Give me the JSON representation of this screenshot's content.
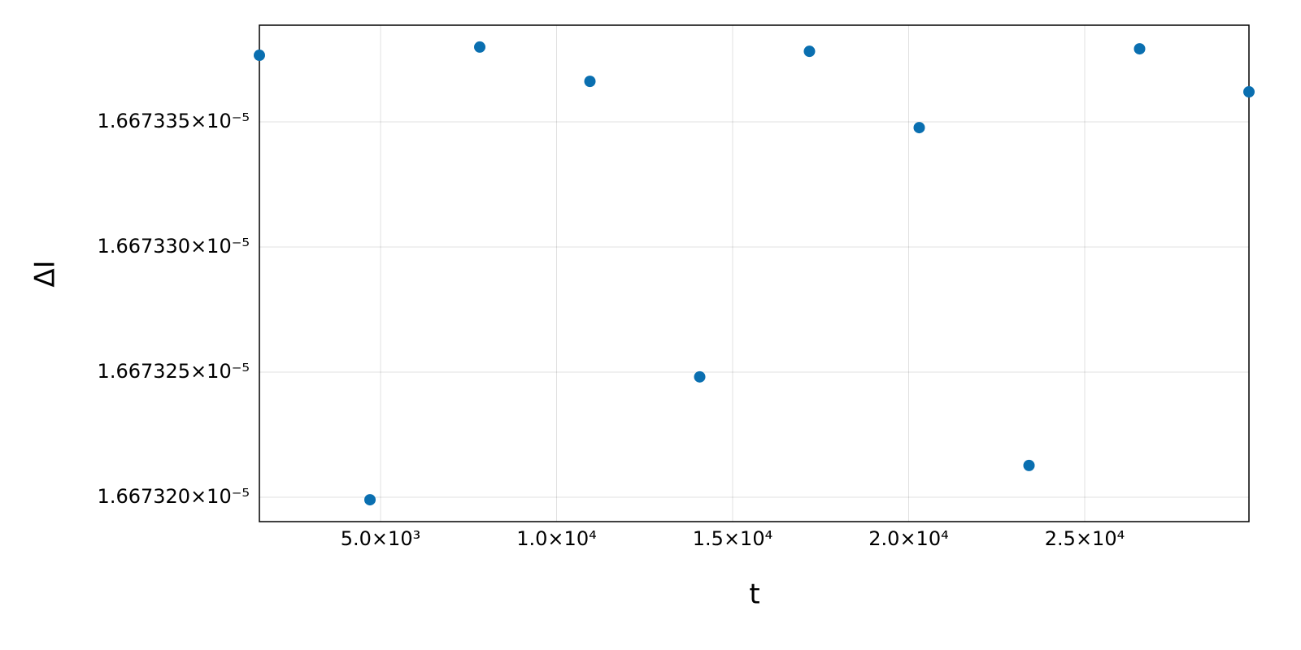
{
  "chart_data": {
    "type": "scatter",
    "x_label": "t",
    "y_label": "ΔI",
    "x": [
      1559,
      4700,
      7818,
      10947,
      14065,
      17182,
      20300,
      23418,
      26559,
      29665
    ],
    "series": [
      {
        "color": "#0a6fb0",
        "values": [
          1.667337662e-05,
          1.6673199e-05,
          1.66733799e-05,
          1.66733662e-05,
          1.66732481e-05,
          1.66733782e-05,
          1.66733477e-05,
          1.66732127e-05,
          1.66733792e-05,
          1.6673362e-05
        ]
      }
    ],
    "xlim": [
      1559,
      29665
    ],
    "ylim": [
      1.667319026e-05,
      1.667338864e-05
    ],
    "xticks": [
      {
        "value": 5000,
        "label": "5.0×10³"
      },
      {
        "value": 10000,
        "label": "1.0×10⁴"
      },
      {
        "value": 15000,
        "label": "1.5×10⁴"
      },
      {
        "value": 20000,
        "label": "2.0×10⁴"
      },
      {
        "value": 25000,
        "label": "2.5×10⁴"
      }
    ],
    "yticks": [
      {
        "value": 1.66732e-05,
        "label": "1.667320×10⁻⁵"
      },
      {
        "value": 1.667325e-05,
        "label": "1.667325×10⁻⁵"
      },
      {
        "value": 1.66733e-05,
        "label": "1.667330×10⁻⁵"
      },
      {
        "value": 1.667335e-05,
        "label": "1.667335×10⁻⁵"
      }
    ],
    "grid": true
  }
}
